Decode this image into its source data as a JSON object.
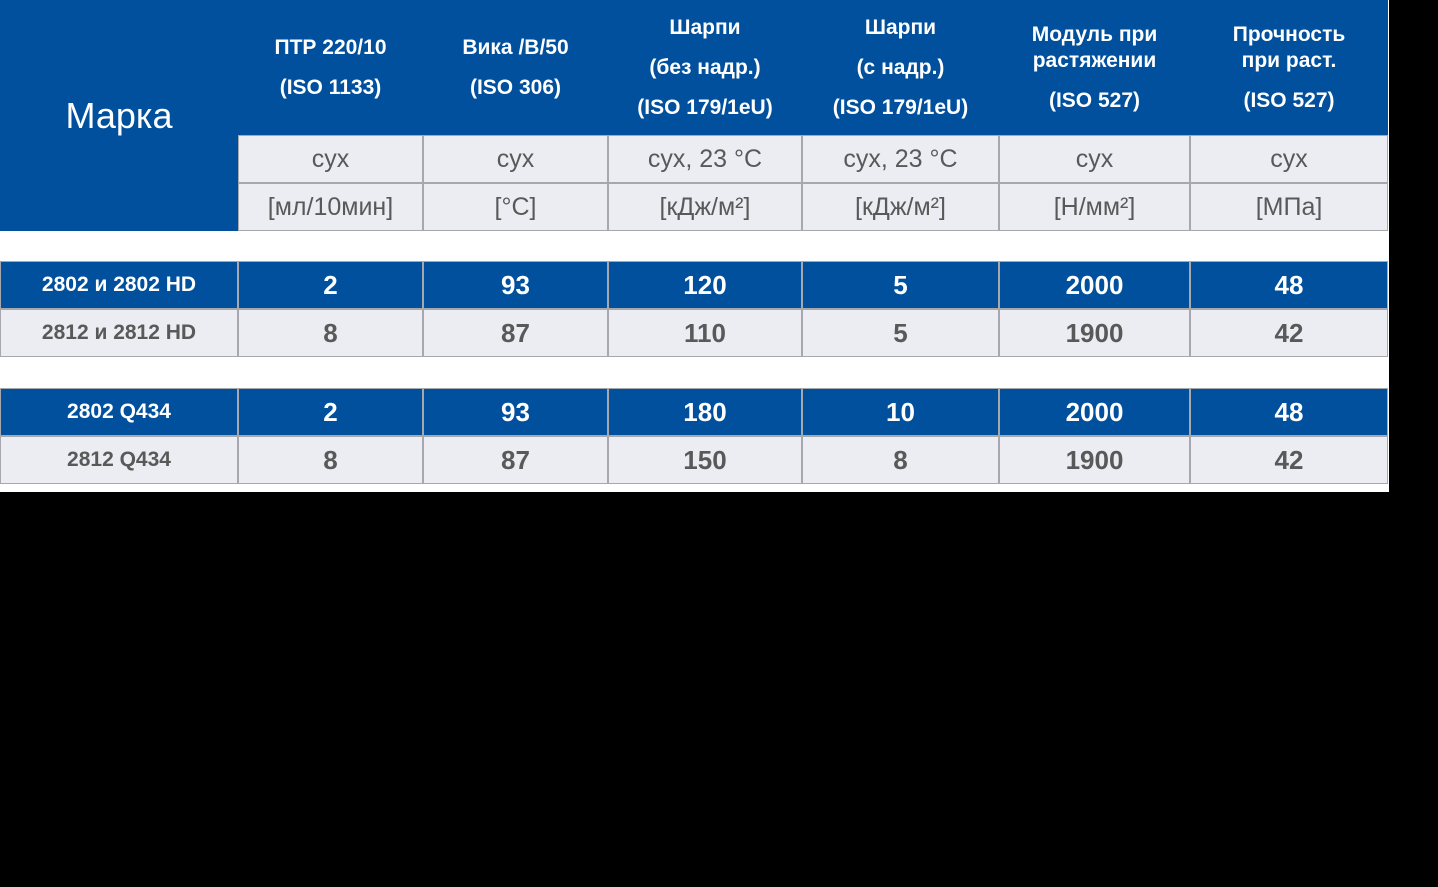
{
  "brand_header": "Марка",
  "columns": [
    {
      "lines": [
        "ПТР 220/10",
        "(ISO 1133)"
      ],
      "condition": "сух",
      "unit": "[мл/10мин]"
    },
    {
      "lines": [
        "Вика /B/50",
        "(ISO 306)"
      ],
      "condition": "сух",
      "unit": "[°C]"
    },
    {
      "lines": [
        "Шарпи",
        "(без надр.)",
        "(ISO 179/1eU)"
      ],
      "condition": "сух, 23 °C",
      "unit": "[кДж/м²]"
    },
    {
      "lines": [
        "Шарпи",
        "(с надр.)",
        "(ISO 179/1eU)"
      ],
      "condition": "сух, 23 °C",
      "unit": "[кДж/м²]"
    },
    {
      "lines": [
        "Модуль при",
        "растяжении",
        "(ISO 527)"
      ],
      "condition": "сух",
      "unit": "[Н/мм²]"
    },
    {
      "lines": [
        "Прочность",
        "при раст.",
        "(ISO 527)"
      ],
      "condition": "сух",
      "unit": "[МПа]"
    }
  ],
  "groups": [
    {
      "rows": [
        {
          "name": "2802 и 2802 HD",
          "values": [
            "2",
            "93",
            "120",
            "5",
            "2000",
            "48"
          ],
          "style": "blue"
        },
        {
          "name": "2812 и 2812 HD",
          "values": [
            "8",
            "87",
            "110",
            "5",
            "1900",
            "42"
          ],
          "style": "grey"
        }
      ]
    },
    {
      "rows": [
        {
          "name": "2802 Q434",
          "values": [
            "2",
            "93",
            "180",
            "10",
            "2000",
            "48"
          ],
          "style": "blue"
        },
        {
          "name": "2812 Q434",
          "values": [
            "8",
            "87",
            "150",
            "8",
            "1900",
            "42"
          ],
          "style": "grey"
        }
      ]
    }
  ]
}
